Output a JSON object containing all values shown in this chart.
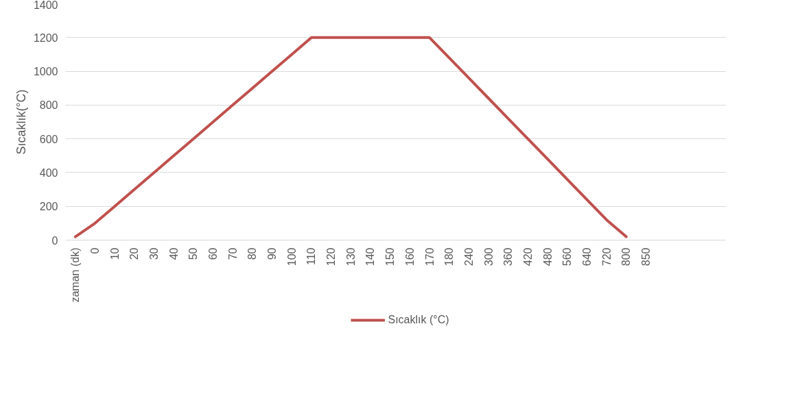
{
  "chart_data": {
    "type": "line",
    "ylabel": "Sıcaklık(°C)",
    "categories": [
      "zaman (dk)",
      "0",
      "10",
      "20",
      "30",
      "40",
      "50",
      "60",
      "70",
      "80",
      "90",
      "100",
      "110",
      "120",
      "130",
      "140",
      "150",
      "160",
      "170",
      "180",
      "240",
      "300",
      "360",
      "420",
      "480",
      "560",
      "640",
      "720",
      "800",
      "850",
      null,
      null,
      null,
      null
    ],
    "series": [
      {
        "name": "Sıcaklık (°C)",
        "color": "#c0504d",
        "values": [
          20,
          100,
          200,
          300,
          400,
          500,
          600,
          700,
          800,
          900,
          1000,
          1100,
          1200,
          1200,
          1200,
          1200,
          1200,
          1200,
          1200,
          1080,
          960,
          840,
          720,
          600,
          480,
          360,
          240,
          120,
          20,
          null,
          null,
          null,
          null,
          null
        ]
      }
    ],
    "ylim": [
      0,
      1400
    ],
    "yticks": [
      0,
      200,
      400,
      600,
      800,
      1000,
      1200,
      1400
    ],
    "grid": "y",
    "legend": "bottom",
    "marker": "none",
    "line_style": "solid"
  }
}
